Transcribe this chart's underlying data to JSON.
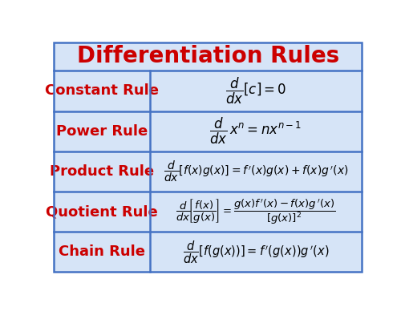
{
  "title": "Differentiation Rules",
  "title_color": "#CC0000",
  "title_fontsize": 20,
  "row_bg": "#D6E4F7",
  "border_color": "#4472C4",
  "rule_name_color": "#CC0000",
  "formula_color": "#000000",
  "rules": [
    {
      "name": "Constant Rule",
      "formula": "$\\dfrac{d}{dx}[c] = 0$",
      "formula_fontsize": 12
    },
    {
      "name": "Power Rule",
      "formula": "$\\dfrac{d}{dx}\\,x^n = nx^{n-1}$",
      "formula_fontsize": 12
    },
    {
      "name": "Product Rule",
      "formula": "$\\dfrac{d}{dx}[f(x)g(x)] = f\\,'(x)g(x) + f(x)g\\,'(x)$",
      "formula_fontsize": 10
    },
    {
      "name": "Quotient Rule",
      "formula": "$\\dfrac{d}{dx}\\!\\left[\\dfrac{f(x)}{g(x)}\\right] = \\dfrac{g(x)f\\,'(x) - f(x)g\\,'(x)}{[g(x)]^2}$",
      "formula_fontsize": 9.5
    },
    {
      "name": "Chain Rule",
      "formula": "$\\dfrac{d}{dx}[f(g(x))] = f\\,'(g(x))g\\,'(x)$",
      "formula_fontsize": 10.5
    }
  ],
  "fig_width": 5.06,
  "fig_height": 3.88,
  "dpi": 100
}
